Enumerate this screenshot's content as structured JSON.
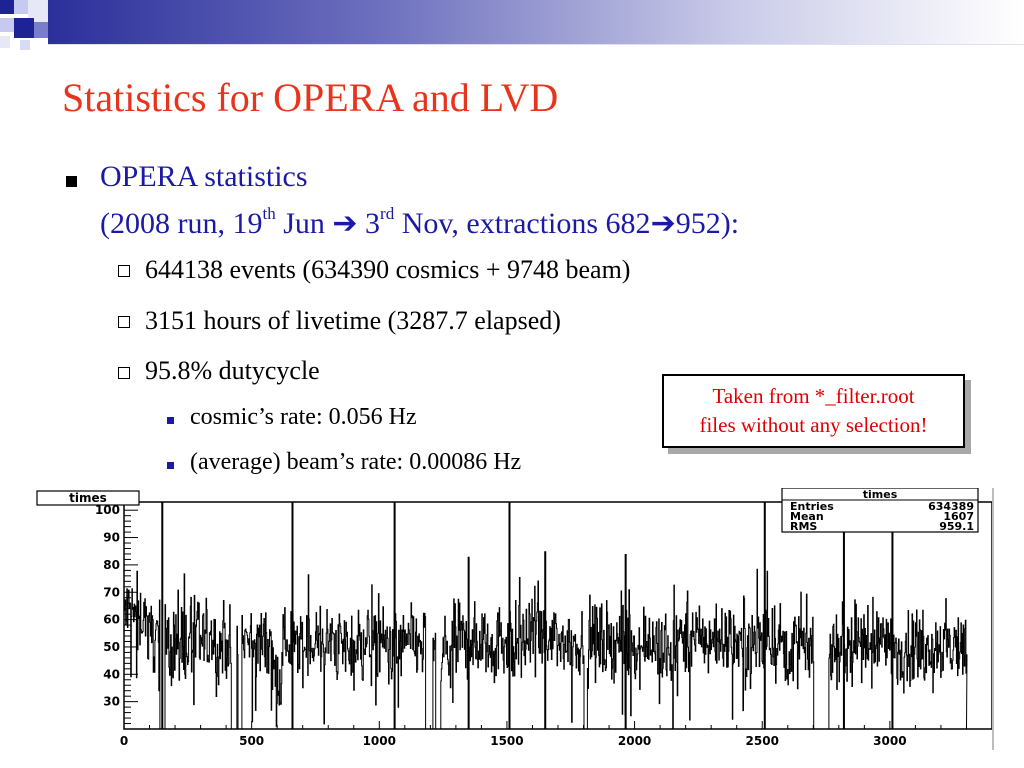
{
  "slide": {
    "title": "Statistics for OPERA and LVD",
    "bullet1": {
      "line1": "OPERA statistics",
      "line2": {
        "p1": "(2008 run, 19",
        "sup1": "th",
        "p2": " Jun ",
        "arrow": "➔",
        "p3": " 3",
        "sup2": "rd",
        "p4": " Nov, extractions 682",
        "p5": "952):"
      }
    },
    "subitems": [
      "644138 events (634390 cosmics + 9748 beam)",
      "3151 hours of livetime (3287.7 elapsed)",
      "95.8% dutycycle"
    ],
    "subsubitems": [
      "cosmic’s rate: 0.056 Hz",
      "(average) beam’s rate: 0.00086 Hz"
    ],
    "note": {
      "line1": "Taken from *_filter.root",
      "line2": "files without any selection!"
    }
  },
  "chart_data": {
    "type": "bar",
    "title": "times",
    "stats": {
      "title": "times",
      "rows": [
        {
          "label": "Entries",
          "value": "634389"
        },
        {
          "label": "Mean",
          "value": "1607"
        },
        {
          "label": "RMS",
          "value": "959.1"
        }
      ]
    },
    "xlim": [
      0,
      3400
    ],
    "ylim": [
      20,
      103
    ],
    "x_ticks": [
      "0",
      "500",
      "1000",
      "1500",
      "2000",
      "2500",
      "3000"
    ],
    "y_ticks": [
      "30",
      "40",
      "50",
      "60",
      "70",
      "80",
      "90",
      "100"
    ],
    "base_level": 52,
    "segments": [
      {
        "x": [
          0,
          90
        ],
        "mean": 62
      },
      {
        "x": [
          90,
          140
        ],
        "mean": 55
      },
      {
        "x": [
          140,
          580
        ],
        "mean": 52
      },
      {
        "x": [
          580,
          620
        ],
        "mean": 40
      },
      {
        "x": [
          620,
          1190
        ],
        "mean": 51
      },
      {
        "x": [
          1190,
          1280
        ],
        "mean": 48
      },
      {
        "x": [
          1280,
          2090
        ],
        "mean": 52
      },
      {
        "x": [
          2090,
          2170
        ],
        "mean": 47
      },
      {
        "x": [
          2170,
          2570
        ],
        "mean": 53
      },
      {
        "x": [
          2570,
          2700
        ],
        "mean": 50
      },
      {
        "x": [
          2760,
          3300
        ],
        "mean": 50
      }
    ],
    "gaps": [
      [
        140,
        160
      ],
      [
        420,
        440
      ],
      [
        445,
        460
      ],
      [
        1180,
        1200
      ],
      [
        1190,
        1210
      ],
      [
        1220,
        1240
      ],
      [
        1800,
        1815
      ],
      [
        2730,
        2760
      ]
    ],
    "spikes": [
      {
        "x": 150,
        "y": 103
      },
      {
        "x": 660,
        "y": 103
      },
      {
        "x": 1060,
        "y": 103
      },
      {
        "x": 1510,
        "y": 103
      },
      {
        "x": 2510,
        "y": 103
      },
      {
        "x": 2820,
        "y": 103
      },
      {
        "x": 1965,
        "y": 84
      },
      {
        "x": 3010,
        "y": 93
      },
      {
        "x": 1350,
        "y": 83
      },
      {
        "x": 1650,
        "y": 85
      }
    ]
  }
}
